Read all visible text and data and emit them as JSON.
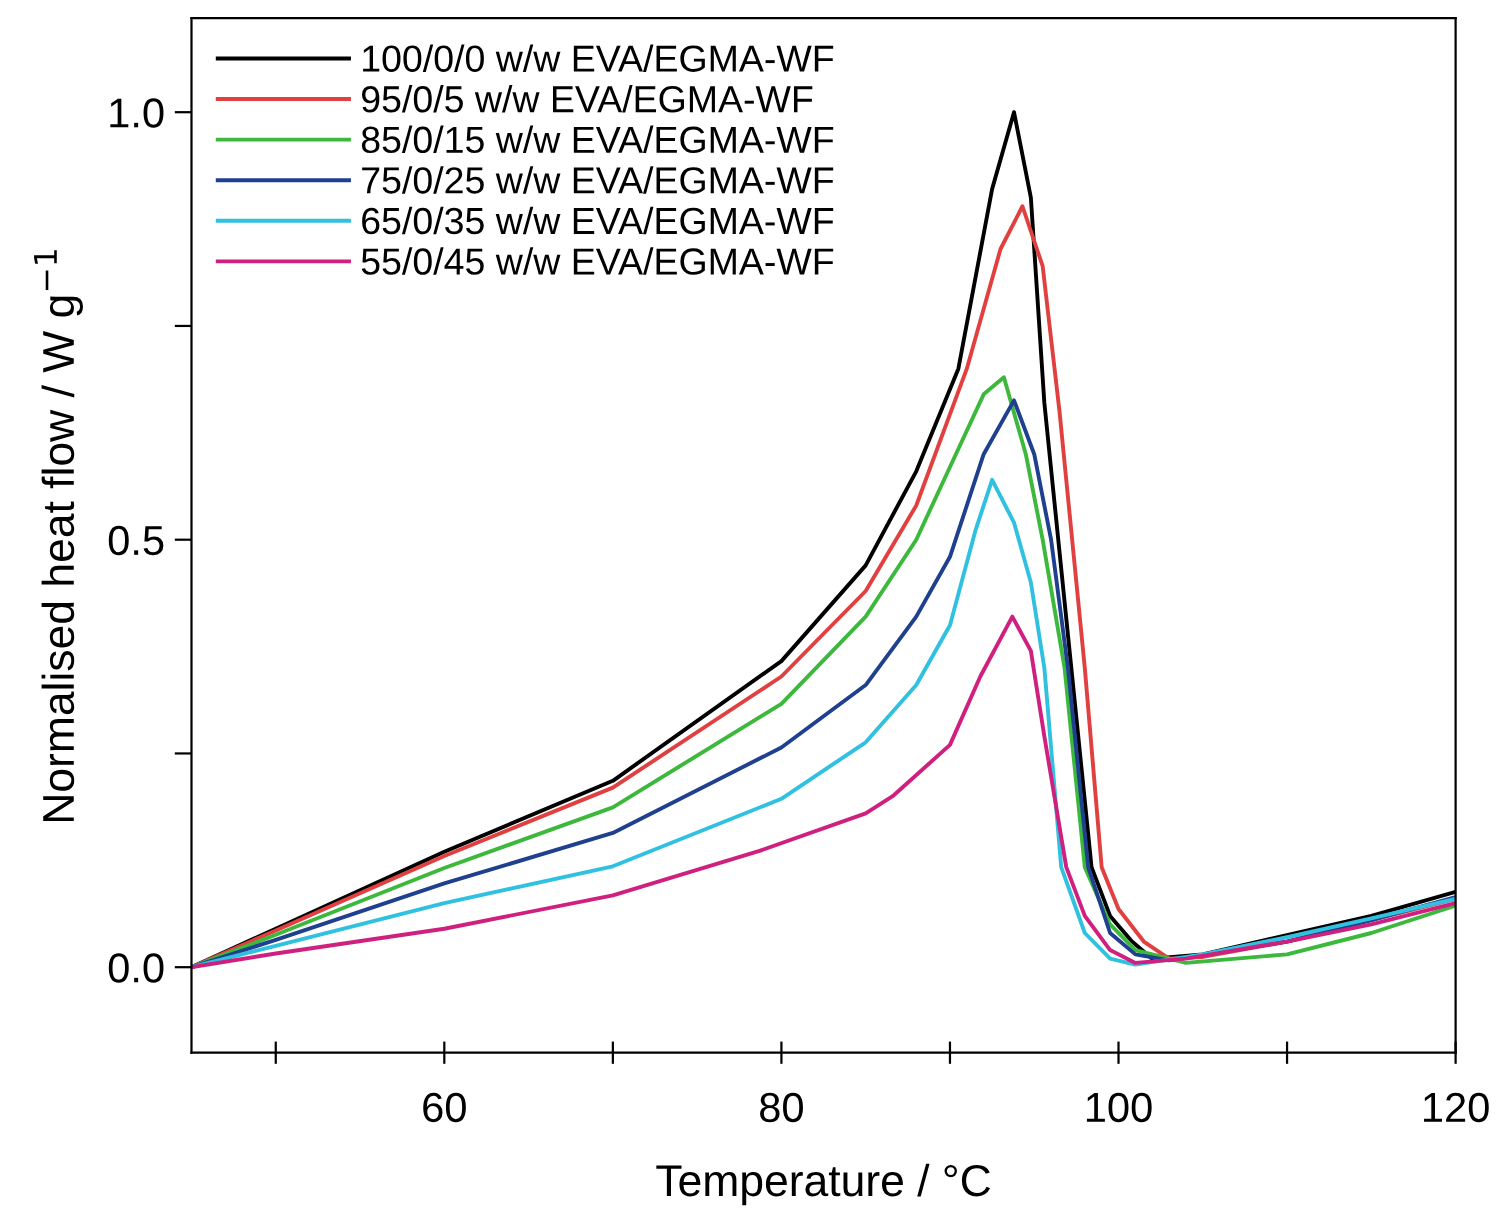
{
  "chart_data": {
    "type": "line",
    "xlabel": "Temperature / °C",
    "ylabel": "Normalised heat flow / W g$^{−1}$",
    "xlim": [
      45,
      120
    ],
    "ylim": [
      -0.1,
      1.11
    ],
    "xticks": [
      {
        "value": 50,
        "label": null
      },
      60,
      {
        "value": 70,
        "label": null
      },
      80,
      {
        "value": 90,
        "label": null
      },
      100,
      {
        "value": 110,
        "label": null
      },
      120
    ],
    "yticks": [
      {
        "value": 0,
        "label": "0.0"
      },
      {
        "value": 0.25,
        "label": null
      },
      {
        "value": 0.5,
        "label": "0.5"
      },
      {
        "value": 0.75,
        "label": null
      },
      {
        "value": 1.0,
        "label": "1.0"
      }
    ],
    "legend": "top left",
    "grid": false,
    "marker": "none",
    "line_style": "solid",
    "series": [
      {
        "name": "100/0/0 w/w EVA/EGMA-WF",
        "color": "#000000",
        "x": [
          45,
          50,
          60,
          70,
          80,
          85,
          88,
          90.5,
          92.5,
          93.8,
          94.8,
          95.6,
          97.2,
          98.4,
          99.5,
          100.8,
          102,
          105,
          115,
          120
        ],
        "values": [
          0,
          0.045,
          0.135,
          0.218,
          0.358,
          0.47,
          0.58,
          0.7,
          0.91,
          1.0,
          0.9,
          0.66,
          0.35,
          0.117,
          0.06,
          0.03,
          0.01,
          0.015,
          0.06,
          0.088
        ]
      },
      {
        "name": "95/0/5 w/w EVA/EGMA-WF",
        "color": "#e0403f",
        "x": [
          45,
          50,
          60,
          70,
          80,
          85,
          88,
          91,
          93,
          94.3,
          95.5,
          96.5,
          98,
          99,
          100,
          101.5,
          103,
          105,
          110,
          115,
          120
        ],
        "values": [
          0,
          0.043,
          0.13,
          0.21,
          0.34,
          0.44,
          0.54,
          0.7,
          0.84,
          0.89,
          0.82,
          0.65,
          0.35,
          0.117,
          0.068,
          0.03,
          0.01,
          0.012,
          0.03,
          0.055,
          0.08
        ]
      },
      {
        "name": "85/0/15 w/w EVA/EGMA-WF",
        "color": "#3cb83c",
        "x": [
          45,
          50,
          60,
          70,
          80,
          85,
          88,
          90,
          92,
          93.2,
          94.5,
          95.5,
          96.8,
          98,
          99.5,
          101,
          104,
          110,
          115,
          120
        ],
        "values": [
          0,
          0.038,
          0.116,
          0.187,
          0.308,
          0.41,
          0.5,
          0.585,
          0.67,
          0.69,
          0.6,
          0.5,
          0.35,
          0.117,
          0.05,
          0.02,
          0.005,
          0.015,
          0.04,
          0.072
        ]
      },
      {
        "name": "75/0/25 w/w EVA/EGMA-WF",
        "color": "#1f3f8f",
        "x": [
          45,
          50,
          60,
          70,
          80,
          85,
          88,
          90,
          92,
          93.8,
          95,
          96,
          97,
          98.2,
          99.5,
          101,
          103,
          110,
          115,
          120
        ],
        "values": [
          0,
          0.032,
          0.098,
          0.157,
          0.257,
          0.33,
          0.41,
          0.48,
          0.6,
          0.663,
          0.6,
          0.5,
          0.35,
          0.117,
          0.04,
          0.015,
          0.008,
          0.03,
          0.055,
          0.082
        ]
      },
      {
        "name": "65/0/35 w/w EVA/EGMA-WF",
        "color": "#30c0e0",
        "x": [
          45,
          50,
          60,
          70,
          80,
          85,
          88,
          90,
          91.5,
          92.5,
          93.8,
          94.8,
          95.6,
          96.6,
          98,
          99.5,
          101,
          105,
          110,
          115,
          120
        ],
        "values": [
          0,
          0.025,
          0.075,
          0.118,
          0.197,
          0.263,
          0.33,
          0.4,
          0.51,
          0.57,
          0.52,
          0.45,
          0.35,
          0.117,
          0.04,
          0.01,
          0.003,
          0.015,
          0.035,
          0.057,
          0.08
        ]
      },
      {
        "name": "55/0/45 w/w EVA/EGMA-WF",
        "color": "#d0207f",
        "x": [
          45,
          50,
          60,
          70,
          78.7,
          85,
          86.6,
          90,
          91.8,
          93.7,
          94.8,
          95.6,
          96.9,
          98,
          99.5,
          101,
          104,
          110,
          115,
          120
        ],
        "values": [
          0,
          0.016,
          0.045,
          0.084,
          0.136,
          0.18,
          0.2,
          0.26,
          0.34,
          0.41,
          0.37,
          0.27,
          0.117,
          0.06,
          0.02,
          0.005,
          0.01,
          0.03,
          0.05,
          0.075
        ]
      }
    ]
  }
}
